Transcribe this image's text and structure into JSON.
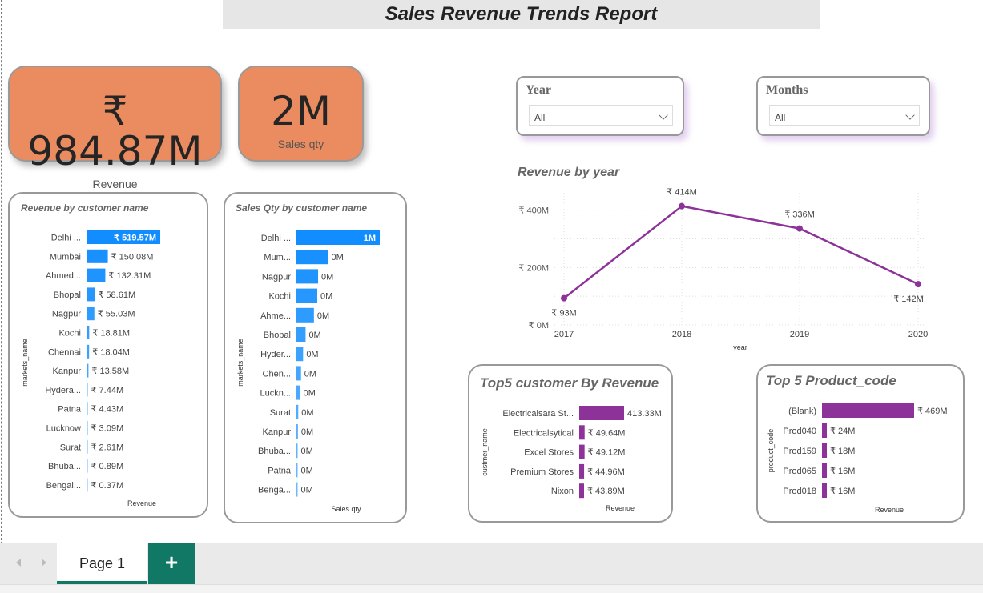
{
  "report": {
    "title": "Sales Revenue Trends Report"
  },
  "kpis": {
    "revenue": {
      "value": "₹ 984.87M",
      "label": "Revenue"
    },
    "sales_qty": {
      "value": "2M",
      "label": "Sales qty"
    }
  },
  "slicers": {
    "year": {
      "title": "Year",
      "value": "All",
      "icon": "chevron-down-icon"
    },
    "months": {
      "title": "Months",
      "value": "All",
      "icon": "chevron-down-icon"
    }
  },
  "colors": {
    "blue": "#118dff",
    "purple": "#8c3298",
    "kpi": "#eb8c60",
    "tab": "#117865"
  },
  "chart_data": [
    {
      "id": "rev_by_customer",
      "type": "bar",
      "orientation": "horizontal",
      "title": "Revenue by customer name",
      "xlabel": "Revenue",
      "ylabel": "markets_name",
      "categories": [
        "Delhi ...",
        "Mumbai",
        "Ahmed...",
        "Bhopal",
        "Nagpur",
        "Kochi",
        "Chennai",
        "Kanpur",
        "Hydera...",
        "Patna",
        "Lucknow",
        "Surat",
        "Bhuba...",
        "Bengal..."
      ],
      "values": [
        519.57,
        150.08,
        132.31,
        58.61,
        55.03,
        18.81,
        18.04,
        13.58,
        7.44,
        4.43,
        3.09,
        2.61,
        0.89,
        0.37
      ],
      "labels": [
        "₹ 519.57M",
        "₹ 150.08M",
        "₹ 132.31M",
        "₹ 58.61M",
        "₹ 55.03M",
        "₹ 18.81M",
        "₹ 18.04M",
        "₹ 13.58M",
        "₹ 7.44M",
        "₹ 4.43M",
        "₹ 3.09M",
        "₹ 2.61M",
        "₹ 0.89M",
        "₹ 0.37M"
      ]
    },
    {
      "id": "qty_by_customer",
      "type": "bar",
      "orientation": "horizontal",
      "title": "Sales Qty by customer name",
      "xlabel": "Sales qty",
      "ylabel": "markets_name",
      "categories": [
        "Delhi ...",
        "Mum...",
        "Nagpur",
        "Kochi",
        "Ahme...",
        "Bhopal",
        "Hyder...",
        "Chen...",
        "Luckn...",
        "Surat",
        "Kanpur",
        "Bhuba...",
        "Patna",
        "Benga..."
      ],
      "values": [
        1000000,
        380000,
        260000,
        250000,
        210000,
        110000,
        80000,
        55000,
        45000,
        22000,
        18000,
        12000,
        9000,
        6000
      ],
      "labels": [
        "1M",
        "0M",
        "0M",
        "0M",
        "0M",
        "0M",
        "0M",
        "0M",
        "0M",
        "0M",
        "0M",
        "0M",
        "0M",
        "0M"
      ]
    },
    {
      "id": "rev_by_year",
      "type": "line",
      "title": "Revenue by year",
      "xlabel": "year",
      "ylabel": "",
      "x": [
        "2017",
        "2018",
        "2019",
        "2020"
      ],
      "values": [
        93,
        414,
        336,
        142
      ],
      "labels": [
        "₹ 93M",
        "₹ 414M",
        "₹ 336M",
        "₹ 142M"
      ],
      "yticks": [
        "₹ 0M",
        "₹ 200M",
        "₹ 400M"
      ],
      "ylim": [
        0,
        480
      ],
      "grid": true
    },
    {
      "id": "top5_customer",
      "type": "bar",
      "orientation": "horizontal",
      "title": "Top5 customer By Revenue",
      "xlabel": "Revenue",
      "ylabel": "custmer_name",
      "categories": [
        "Electricalsara St...",
        "Electricalsytical",
        "Excel Stores",
        "Premium Stores",
        "Nixon"
      ],
      "values": [
        413.33,
        49.64,
        49.12,
        44.96,
        43.89
      ],
      "labels": [
        "413.33M",
        "₹ 49.64M",
        "₹ 49.12M",
        "₹ 44.96M",
        "₹ 43.89M"
      ]
    },
    {
      "id": "top5_product",
      "type": "bar",
      "orientation": "horizontal",
      "title": "Top 5 Product_code",
      "xlabel": "Revenue",
      "ylabel": "product_code",
      "categories": [
        "(Blank)",
        "Prod040",
        "Prod159",
        "Prod065",
        "Prod018"
      ],
      "values": [
        469,
        24,
        18,
        16,
        16
      ],
      "labels": [
        "₹ 469M",
        "₹ 24M",
        "₹ 18M",
        "₹ 16M",
        "₹ 16M"
      ]
    }
  ],
  "tabs": {
    "page1": "Page 1",
    "add": "+"
  }
}
